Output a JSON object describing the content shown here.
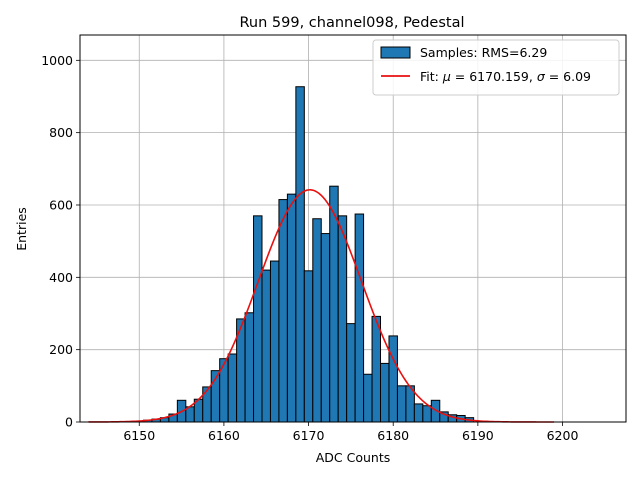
{
  "chart_data": {
    "type": "bar",
    "title": "Run 599, channel098, Pedestal",
    "xlabel": "ADC Counts",
    "ylabel": "Entries",
    "xlim": [
      6143.0,
      6207.5
    ],
    "ylim": [
      0,
      1070
    ],
    "xticks": [
      6150,
      6160,
      6170,
      6180,
      6190,
      6200
    ],
    "yticks": [
      0,
      200,
      400,
      600,
      800,
      1000
    ],
    "grid": true,
    "legend_position": "top-right",
    "bin_width": 1,
    "histogram": {
      "name": "Samples: RMS=6.29",
      "color": "#1f77b4",
      "edgecolor": "#000000",
      "bins": [
        {
          "x": 6151,
          "y": 5
        },
        {
          "x": 6152,
          "y": 8
        },
        {
          "x": 6153,
          "y": 12
        },
        {
          "x": 6154,
          "y": 22
        },
        {
          "x": 6155,
          "y": 60
        },
        {
          "x": 6156,
          "y": 42
        },
        {
          "x": 6157,
          "y": 63
        },
        {
          "x": 6158,
          "y": 97
        },
        {
          "x": 6159,
          "y": 142
        },
        {
          "x": 6160,
          "y": 175
        },
        {
          "x": 6161,
          "y": 188
        },
        {
          "x": 6162,
          "y": 285
        },
        {
          "x": 6163,
          "y": 302
        },
        {
          "x": 6164,
          "y": 570
        },
        {
          "x": 6165,
          "y": 420
        },
        {
          "x": 6166,
          "y": 445
        },
        {
          "x": 6167,
          "y": 615
        },
        {
          "x": 6168,
          "y": 630
        },
        {
          "x": 6169,
          "y": 927
        },
        {
          "x": 6170,
          "y": 418
        },
        {
          "x": 6171,
          "y": 562
        },
        {
          "x": 6172,
          "y": 521
        },
        {
          "x": 6173,
          "y": 652
        },
        {
          "x": 6174,
          "y": 570
        },
        {
          "x": 6175,
          "y": 272
        },
        {
          "x": 6176,
          "y": 575
        },
        {
          "x": 6177,
          "y": 132
        },
        {
          "x": 6178,
          "y": 292
        },
        {
          "x": 6179,
          "y": 162
        },
        {
          "x": 6180,
          "y": 238
        },
        {
          "x": 6181,
          "y": 100
        },
        {
          "x": 6182,
          "y": 100
        },
        {
          "x": 6183,
          "y": 50
        },
        {
          "x": 6184,
          "y": 45
        },
        {
          "x": 6185,
          "y": 60
        },
        {
          "x": 6186,
          "y": 28
        },
        {
          "x": 6187,
          "y": 20
        },
        {
          "x": 6188,
          "y": 18
        },
        {
          "x": 6189,
          "y": 12
        }
      ]
    },
    "fit": {
      "name": "Fit: μ = 6170.159, σ = 6.09",
      "name_parts": {
        "prefix": "Fit: ",
        "mu_symbol": "μ",
        "mid": " = 6170.159, ",
        "sigma_symbol": "σ",
        "suffix": " = 6.09"
      },
      "color": "#e8110f",
      "mu": 6170.159,
      "sigma": 6.09,
      "amplitude": 642,
      "x_range": [
        6144,
        6199
      ]
    }
  }
}
